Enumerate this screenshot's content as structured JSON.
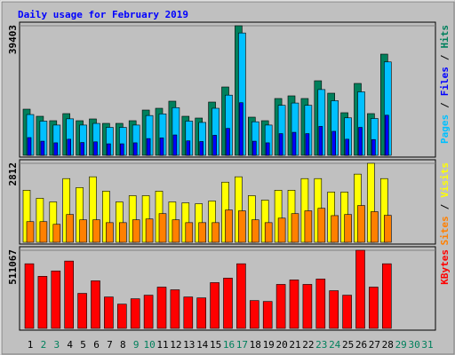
{
  "chart_data": {
    "type": "bar",
    "title": "Daily usage for February 2019",
    "title_color": "#0000ff",
    "categories": [
      1,
      2,
      3,
      4,
      5,
      6,
      7,
      8,
      9,
      10,
      11,
      12,
      13,
      14,
      15,
      16,
      17,
      18,
      19,
      20,
      21,
      22,
      23,
      24,
      25,
      26,
      27,
      28,
      29,
      30,
      31
    ],
    "category_colors": [
      "#000000",
      "#00805c",
      "#00805c",
      "#000000",
      "#000000",
      "#000000",
      "#000000",
      "#000000",
      "#00805c",
      "#00805c",
      "#000000",
      "#000000",
      "#000000",
      "#000000",
      "#000000",
      "#00805c",
      "#00805c",
      "#000000",
      "#000000",
      "#000000",
      "#000000",
      "#000000",
      "#00805c",
      "#00805c",
      "#000000",
      "#000000",
      "#000000",
      "#000000",
      "#00805c",
      "#00805c",
      "#00805c"
    ],
    "panels": [
      {
        "ylim": [
          0,
          39403
        ],
        "yticks": [
          39403
        ],
        "axis_title": [
          {
            "text": "Pages",
            "color": "#00c0ff"
          },
          {
            "text": "/",
            "color": "#000000"
          },
          {
            "text": "Files",
            "color": "#0000ff"
          },
          {
            "text": "/",
            "color": "#000000"
          },
          {
            "text": "Hits",
            "color": "#00805c"
          }
        ],
        "series": [
          {
            "name": "Hits",
            "color": "#00805c",
            "values": [
              14034,
              11875,
              10526,
              12685,
              10526,
              11065,
              9716,
              9716,
              10526,
              13764,
              14304,
              16463,
              11875,
              11335,
              16193,
              20781,
              39403,
              11605,
              10526,
              17273,
              18082,
              17273,
              22670,
              18892,
              12954,
              21861,
              12685,
              30767,
              null,
              null,
              null
            ]
          },
          {
            "name": "Pages",
            "color": "#00c0ff",
            "values": [
              12400,
              10400,
              9200,
              11100,
              9200,
              9700,
              8500,
              8500,
              9200,
              12100,
              12600,
              14500,
              10400,
              10000,
              14300,
              18300,
              37200,
              10200,
              9200,
              15200,
              15900,
              15200,
              20000,
              16600,
              11400,
              19300,
              11200,
              28400,
              null,
              null,
              null
            ]
          },
          {
            "name": "Files",
            "color": "#0000ff",
            "values": [
              5400,
              4300,
              3800,
              4900,
              3900,
              4100,
              3500,
              3500,
              3800,
              5100,
              5300,
              6200,
              4400,
              4200,
              6100,
              8200,
              16000,
              4300,
              3800,
              6600,
              7000,
              6600,
              8800,
              7300,
              4900,
              8500,
              4800,
              12200,
              null,
              null,
              null
            ]
          }
        ]
      },
      {
        "ylim": [
          0,
          2812
        ],
        "yticks": [
          2812
        ],
        "axis_title": [
          {
            "text": "Sites",
            "color": "#ff8000"
          },
          {
            "text": "/",
            "color": "#000000"
          },
          {
            "text": "Visits",
            "color": "#ffff00"
          }
        ],
        "series": [
          {
            "name": "Visits",
            "color": "#ffff00",
            "values": [
              1853,
              1566,
              1438,
              2268,
              1949,
              2332,
              1821,
              1438,
              1661,
              1661,
              1821,
              1438,
              1406,
              1374,
              1470,
              2141,
              2332,
              1661,
              1502,
              1853,
              1853,
              2268,
              2268,
              1789,
              1789,
              2428,
              2812,
              2268,
              null,
              null,
              null
            ]
          },
          {
            "name": "Sites",
            "color": "#ff8000",
            "values": [
              735,
              735,
              640,
              990,
              800,
              800,
              700,
              700,
              800,
              830,
              1020,
              800,
              700,
              700,
              700,
              1150,
              1120,
              800,
              700,
              860,
              1020,
              1120,
              1210,
              950,
              990,
              1310,
              1090,
              960,
              null,
              null,
              null
            ]
          }
        ]
      },
      {
        "ylim": [
          0,
          511067
        ],
        "yticks": [
          511067
        ],
        "axis_title": [
          {
            "text": "KBytes",
            "color": "#ff0000"
          }
        ],
        "series": [
          {
            "name": "KBytes",
            "color": "#ff0000",
            "values": [
              422900,
              340700,
              375900,
              440600,
              229100,
              311300,
              205600,
              158600,
              193800,
              217300,
              270200,
              252600,
              205600,
              199700,
              299600,
              328900,
              422900,
              182100,
              176200,
              287800,
              317200,
              287800,
              323100,
              246700,
              217300,
              511067,
              270200,
              422900,
              null,
              null,
              null
            ]
          }
        ]
      }
    ]
  }
}
